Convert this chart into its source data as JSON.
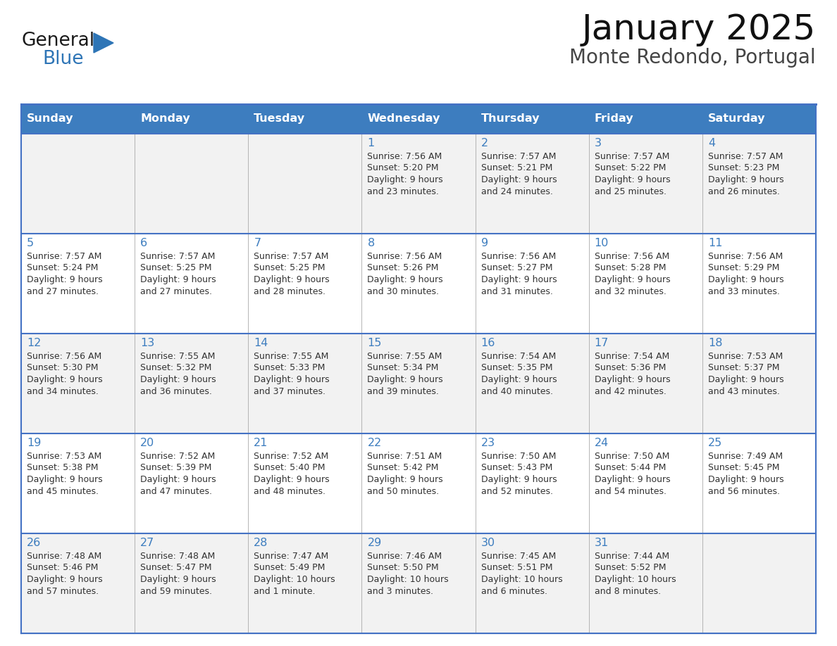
{
  "title": "January 2025",
  "subtitle": "Monte Redondo, Portugal",
  "days_of_week": [
    "Sunday",
    "Monday",
    "Tuesday",
    "Wednesday",
    "Thursday",
    "Friday",
    "Saturday"
  ],
  "header_bg": "#3D7DBF",
  "header_text": "#FFFFFF",
  "cell_bg": "#F2F2F2",
  "cell_bg_white": "#FFFFFF",
  "row_divider_color": "#4472C4",
  "col_divider_color": "#AAAAAA",
  "outer_border_color": "#4472C4",
  "day_number_color": "#3D7DBF",
  "text_color": "#333333",
  "logo_general_color": "#1A1A1A",
  "logo_blue_color": "#2E75B6",
  "logo_triangle_color": "#2E75B6",
  "calendar_data": {
    "1": {
      "sunrise": "7:56 AM",
      "sunset": "5:20 PM",
      "daylight": "9 hours and 23 minutes"
    },
    "2": {
      "sunrise": "7:57 AM",
      "sunset": "5:21 PM",
      "daylight": "9 hours and 24 minutes"
    },
    "3": {
      "sunrise": "7:57 AM",
      "sunset": "5:22 PM",
      "daylight": "9 hours and 25 minutes"
    },
    "4": {
      "sunrise": "7:57 AM",
      "sunset": "5:23 PM",
      "daylight": "9 hours and 26 minutes"
    },
    "5": {
      "sunrise": "7:57 AM",
      "sunset": "5:24 PM",
      "daylight": "9 hours and 27 minutes"
    },
    "6": {
      "sunrise": "7:57 AM",
      "sunset": "5:25 PM",
      "daylight": "9 hours and 27 minutes"
    },
    "7": {
      "sunrise": "7:57 AM",
      "sunset": "5:25 PM",
      "daylight": "9 hours and 28 minutes"
    },
    "8": {
      "sunrise": "7:56 AM",
      "sunset": "5:26 PM",
      "daylight": "9 hours and 30 minutes"
    },
    "9": {
      "sunrise": "7:56 AM",
      "sunset": "5:27 PM",
      "daylight": "9 hours and 31 minutes"
    },
    "10": {
      "sunrise": "7:56 AM",
      "sunset": "5:28 PM",
      "daylight": "9 hours and 32 minutes"
    },
    "11": {
      "sunrise": "7:56 AM",
      "sunset": "5:29 PM",
      "daylight": "9 hours and 33 minutes"
    },
    "12": {
      "sunrise": "7:56 AM",
      "sunset": "5:30 PM",
      "daylight": "9 hours and 34 minutes"
    },
    "13": {
      "sunrise": "7:55 AM",
      "sunset": "5:32 PM",
      "daylight": "9 hours and 36 minutes"
    },
    "14": {
      "sunrise": "7:55 AM",
      "sunset": "5:33 PM",
      "daylight": "9 hours and 37 minutes"
    },
    "15": {
      "sunrise": "7:55 AM",
      "sunset": "5:34 PM",
      "daylight": "9 hours and 39 minutes"
    },
    "16": {
      "sunrise": "7:54 AM",
      "sunset": "5:35 PM",
      "daylight": "9 hours and 40 minutes"
    },
    "17": {
      "sunrise": "7:54 AM",
      "sunset": "5:36 PM",
      "daylight": "9 hours and 42 minutes"
    },
    "18": {
      "sunrise": "7:53 AM",
      "sunset": "5:37 PM",
      "daylight": "9 hours and 43 minutes"
    },
    "19": {
      "sunrise": "7:53 AM",
      "sunset": "5:38 PM",
      "daylight": "9 hours and 45 minutes"
    },
    "20": {
      "sunrise": "7:52 AM",
      "sunset": "5:39 PM",
      "daylight": "9 hours and 47 minutes"
    },
    "21": {
      "sunrise": "7:52 AM",
      "sunset": "5:40 PM",
      "daylight": "9 hours and 48 minutes"
    },
    "22": {
      "sunrise": "7:51 AM",
      "sunset": "5:42 PM",
      "daylight": "9 hours and 50 minutes"
    },
    "23": {
      "sunrise": "7:50 AM",
      "sunset": "5:43 PM",
      "daylight": "9 hours and 52 minutes"
    },
    "24": {
      "sunrise": "7:50 AM",
      "sunset": "5:44 PM",
      "daylight": "9 hours and 54 minutes"
    },
    "25": {
      "sunrise": "7:49 AM",
      "sunset": "5:45 PM",
      "daylight": "9 hours and 56 minutes"
    },
    "26": {
      "sunrise": "7:48 AM",
      "sunset": "5:46 PM",
      "daylight": "9 hours and 57 minutes"
    },
    "27": {
      "sunrise": "7:48 AM",
      "sunset": "5:47 PM",
      "daylight": "9 hours and 59 minutes"
    },
    "28": {
      "sunrise": "7:47 AM",
      "sunset": "5:49 PM",
      "daylight": "10 hours and 1 minute"
    },
    "29": {
      "sunrise": "7:46 AM",
      "sunset": "5:50 PM",
      "daylight": "10 hours and 3 minutes"
    },
    "30": {
      "sunrise": "7:45 AM",
      "sunset": "5:51 PM",
      "daylight": "10 hours and 6 minutes"
    },
    "31": {
      "sunrise": "7:44 AM",
      "sunset": "5:52 PM",
      "daylight": "10 hours and 8 minutes"
    }
  },
  "weeks": [
    [
      null,
      null,
      null,
      1,
      2,
      3,
      4
    ],
    [
      5,
      6,
      7,
      8,
      9,
      10,
      11
    ],
    [
      12,
      13,
      14,
      15,
      16,
      17,
      18
    ],
    [
      19,
      20,
      21,
      22,
      23,
      24,
      25
    ],
    [
      26,
      27,
      28,
      29,
      30,
      31,
      null
    ]
  ]
}
